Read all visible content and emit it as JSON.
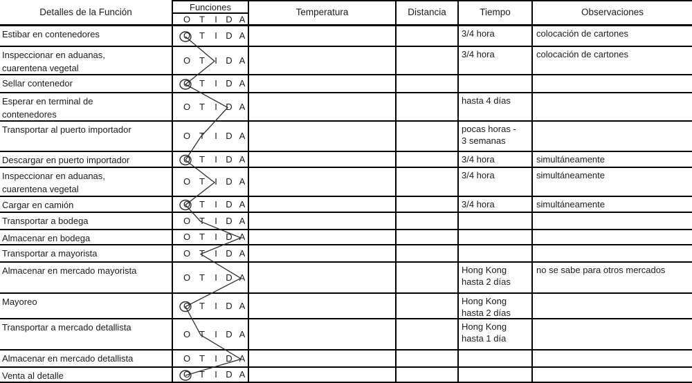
{
  "header": {
    "col_detalles": "Detalles de la Función",
    "col_funciones": "Funciones",
    "funciones_letters": [
      "O",
      "T",
      "I",
      "D",
      "A"
    ],
    "col_temperatura": "Temperatura",
    "col_distancia": "Distancia",
    "col_tiempo": "Tiempo",
    "col_observaciones": "Observaciones"
  },
  "rows": [
    {
      "detalle": "Estibar en contenedores",
      "funcion": "O",
      "temperatura": "",
      "distancia": "",
      "tiempo": "3/4 hora",
      "observaciones": "colocación de cartones"
    },
    {
      "detalle": "Inspeccionar en aduanas,\ncuarentena vegetal",
      "funcion": "I",
      "temperatura": "",
      "distancia": "",
      "tiempo": "3/4 hora",
      "observaciones": "colocación de cartones"
    },
    {
      "detalle": "Sellar contenedor",
      "funcion": "O",
      "temperatura": "",
      "distancia": "",
      "tiempo": "",
      "observaciones": ""
    },
    {
      "detalle": "Esperar en terminal de\ncontenedores",
      "funcion": "D",
      "temperatura": "",
      "distancia": "",
      "tiempo": "hasta 4 días",
      "observaciones": ""
    },
    {
      "detalle": "Transportar al puerto importador",
      "funcion": "T",
      "temperatura": "",
      "distancia": "",
      "tiempo": "pocas horas -\n3 semanas",
      "observaciones": ""
    },
    {
      "detalle": "Descargar en puerto importador",
      "funcion": "O",
      "temperatura": "",
      "distancia": "",
      "tiempo": "3/4 hora",
      "observaciones": "simultáneamente"
    },
    {
      "detalle": "Inspeccionar en aduanas,\ncuarentena vegetal",
      "funcion": "I",
      "temperatura": "",
      "distancia": "",
      "tiempo": "3/4 hora",
      "observaciones": "simultáneamente"
    },
    {
      "detalle": "Cargar en camión",
      "funcion": "O",
      "temperatura": "",
      "distancia": "",
      "tiempo": "3/4 hora",
      "observaciones": "simultáneamente"
    },
    {
      "detalle": "Transportar a bodega",
      "funcion": "T",
      "temperatura": "",
      "distancia": "",
      "tiempo": "",
      "observaciones": ""
    },
    {
      "detalle": "Almacenar en bodega",
      "funcion": "A",
      "temperatura": "",
      "distancia": "",
      "tiempo": "",
      "observaciones": ""
    },
    {
      "detalle": "Transportar a mayorista",
      "funcion": "T",
      "temperatura": "",
      "distancia": "",
      "tiempo": "",
      "observaciones": ""
    },
    {
      "detalle": "Almacenar en mercado mayorista",
      "funcion": "A",
      "temperatura": "",
      "distancia": "",
      "tiempo": "Hong Kong\nhasta 2 días",
      "observaciones": "no se sabe para otros mercados"
    },
    {
      "detalle": "Mayoreo",
      "funcion": "O",
      "temperatura": "",
      "distancia": "",
      "tiempo": "Hong Kong\nhasta 2 días",
      "observaciones": ""
    },
    {
      "detalle": "Transportar a mercado detallista",
      "funcion": "T",
      "temperatura": "",
      "distancia": "",
      "tiempo": "Hong Kong\nhasta 1 día",
      "observaciones": ""
    },
    {
      "detalle": "Almacenar en mercado detallista",
      "funcion": "A",
      "temperatura": "",
      "distancia": "",
      "tiempo": "",
      "observaciones": ""
    },
    {
      "detalle": "Venta al detalle",
      "funcion": "O",
      "temperatura": "",
      "distancia": "",
      "tiempo": "",
      "observaciones": ""
    }
  ],
  "colors": {
    "ink": "#1b1b1b",
    "grid_line": "#000000",
    "paper": "#ffffff",
    "flow_line": "#2e2e2e"
  }
}
